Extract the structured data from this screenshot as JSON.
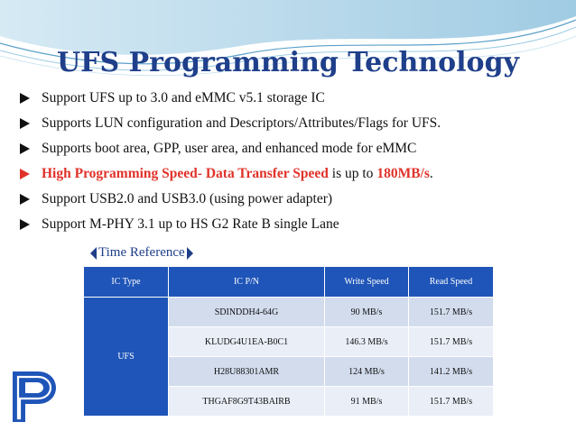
{
  "slide": {
    "title": "UFS Programming Technology",
    "bullets": [
      {
        "text": "Support UFS up to 3.0 and eMMC v5.1 storage IC"
      },
      {
        "text": "Supports LUN configuration and Descriptors/Attributes/Flags for UFS."
      },
      {
        "text": "Supports boot area, GPP, user area, and enhanced mode for eMMC"
      },
      {
        "highlight": "High Programming Speed- Data Transfer Speed",
        "middle": " is up to ",
        "value": "180MB/s",
        "end": "."
      },
      {
        "text": "Support USB2.0 and USB3.0 (using power adapter)"
      },
      {
        "text": "Support M-PHY 3.1 up to HS G2 Rate B single Lane"
      }
    ],
    "time_reference": "Time Reference"
  },
  "table": {
    "headers": [
      "IC Type",
      "IC P/N",
      "Write Speed",
      "Read Speed"
    ],
    "type": "UFS",
    "rows": [
      {
        "pn": "SDINDDH4-64G",
        "write": "90 MB/s",
        "read": "151.7 MB/s"
      },
      {
        "pn": "KLUDG4U1EA-B0C1",
        "write": "146.3 MB/s",
        "read": "151.7 MB/s"
      },
      {
        "pn": "H28U88301AMR",
        "write": "124 MB/s",
        "read": "141.2 MB/s"
      },
      {
        "pn": "THGAF8G9T43BAIRB",
        "write": "91 MB/s",
        "read": "151.7 MB/s"
      }
    ]
  },
  "colors": {
    "title": "#1f3f8a",
    "accent_red": "#e0322a",
    "table_header": "#1f55b8",
    "wave": "#5aa0c8"
  },
  "icons": {
    "bullet": "arrow-bullet-icon",
    "logo": "pp-logo-icon"
  }
}
